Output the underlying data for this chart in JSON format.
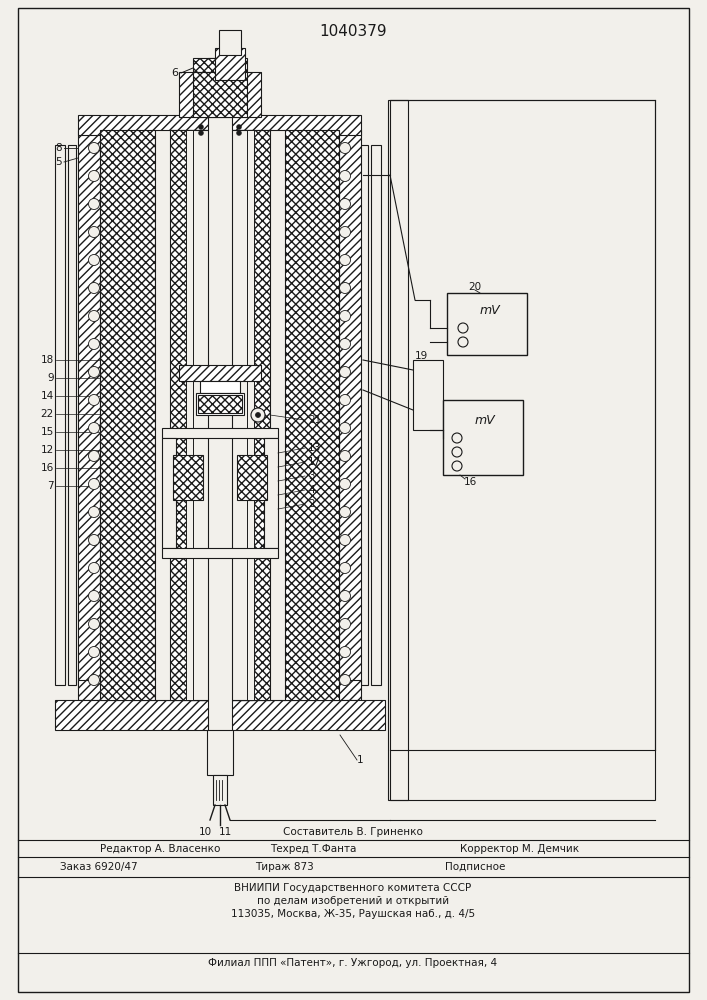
{
  "title": "1040379",
  "bg_color": "#f2f0eb",
  "line_color": "#1a1a1a",
  "footer": {
    "sestavitel": "Составитель В. Гриненко",
    "redaktor": "Редактор А. Власенко",
    "tehred": "Техред Т.Фанта",
    "korrektor": "Корректор М. Демчик",
    "zakaz": "Заказ 6920/47",
    "tirazh": "Тираж 873",
    "podpisnoe": "Подписное",
    "vnipi1": "ВНИИПИ Государственного комитета СССР",
    "vnipi2": "по делам изобретений и открытий",
    "vnipi3": "113035, Москва, Ж-35, Раушская наб., д. 4/5",
    "filial": "Филиал ППП «Патент», г. Ужгород, ул. Проектная, 4"
  }
}
